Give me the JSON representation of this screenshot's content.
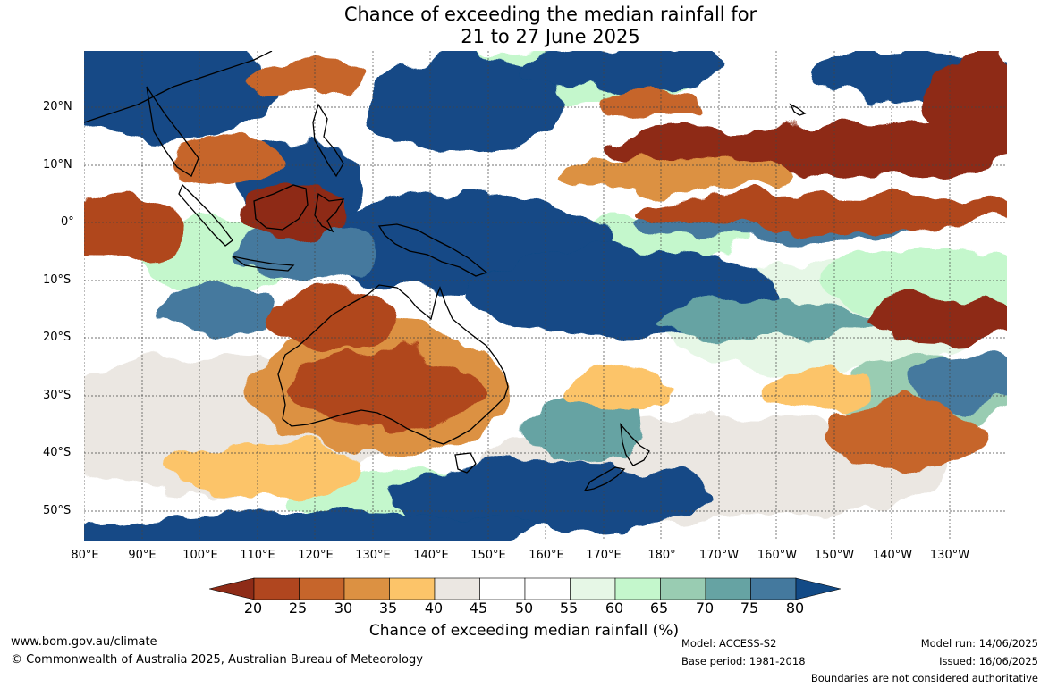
{
  "title": {
    "line1": "Chance of exceeding the median rainfall for",
    "line2": "21 to 27 June 2025"
  },
  "map": {
    "latitude_labels": [
      "20°N",
      "10°N",
      "0°",
      "10°S",
      "20°S",
      "30°S",
      "40°S",
      "50°S"
    ],
    "longitude_labels": [
      "80°E",
      "90°E",
      "100°E",
      "110°E",
      "120°E",
      "130°E",
      "140°E",
      "150°E",
      "160°E",
      "170°E",
      "180°",
      "170°W",
      "160°W",
      "150°W",
      "140°W",
      "130°W"
    ]
  },
  "colorbar": {
    "ticks": [
      "20",
      "25",
      "30",
      "35",
      "40",
      "45",
      "50",
      "55",
      "60",
      "65",
      "70",
      "75",
      "80"
    ],
    "colors": [
      "#8e2b17",
      "#b0461f",
      "#c6652b",
      "#dc9142",
      "#fcc469",
      "#ebe7e2",
      "#ffffff",
      "#ffffff",
      "#e6f7e6",
      "#c4f7cc",
      "#99ccb2",
      "#66a3a3",
      "#44799e",
      "#124a86"
    ],
    "label": "Chance of exceeding median rainfall (%)"
  },
  "footer": {
    "website": "www.bom.gov.au/climate",
    "copyright": "© Commonwealth of Australia 2025, Australian Bureau of Meteorology",
    "model": "Model: ACCESS-S2",
    "base_period": "Base period: 1981-2018",
    "model_run": "Model run: 14/06/2025",
    "issued": "Issued: 16/06/2025",
    "disclaimer": "Boundaries are not considered authoritative"
  }
}
